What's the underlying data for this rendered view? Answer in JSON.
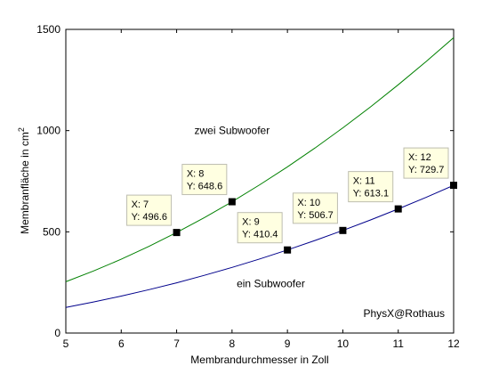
{
  "chart_data": {
    "type": "line",
    "xlabel": "Membrandurchmesser in Zoll",
    "ylabel_main": "Membranfläche in cm",
    "ylabel_sup": "2",
    "xlim": [
      5,
      12
    ],
    "ylim": [
      0,
      1500
    ],
    "x_ticks": [
      "5",
      "6",
      "7",
      "8",
      "9",
      "10",
      "11",
      "12"
    ],
    "y_ticks": [
      "0",
      "500",
      "1000",
      "1500"
    ],
    "grid": false,
    "series": [
      {
        "label": "zwei Subwoofer",
        "color": "#008000",
        "x": [
          5,
          5.5,
          6,
          6.5,
          7,
          7.5,
          8,
          8.5,
          9,
          9.5,
          10,
          10.5,
          11,
          11.5,
          12
        ],
        "y": [
          253.4,
          306.6,
          364.8,
          428.2,
          496.6,
          570.1,
          648.6,
          732.2,
          820.9,
          914.6,
          1013.4,
          1117.3,
          1226.2,
          1340.2,
          1459.3
        ]
      },
      {
        "label": "ein Subwoofer",
        "color": "#00008b",
        "x": [
          5,
          5.5,
          6,
          6.5,
          7,
          7.5,
          8,
          8.5,
          9,
          9.5,
          10,
          10.5,
          11,
          11.5,
          12
        ],
        "y": [
          126.7,
          153.3,
          182.4,
          214.1,
          248.3,
          285.0,
          324.3,
          366.1,
          410.4,
          457.3,
          506.7,
          558.6,
          613.1,
          670.1,
          729.7
        ]
      }
    ],
    "datatips": [
      {
        "x": 7,
        "y": 496.6,
        "xtext": "X: 7",
        "ytext": "Y: 496.6"
      },
      {
        "x": 8,
        "y": 648.6,
        "xtext": "X: 8",
        "ytext": "Y: 648.6"
      },
      {
        "x": 9,
        "y": 410.4,
        "xtext": "X: 9",
        "ytext": "Y: 410.4"
      },
      {
        "x": 10,
        "y": 506.7,
        "xtext": "X: 10",
        "ytext": "Y: 506.7"
      },
      {
        "x": 11,
        "y": 613.1,
        "xtext": "X: 11",
        "ytext": "Y: 613.1"
      },
      {
        "x": 12,
        "y": 729.7,
        "xtext": "X: 12",
        "ytext": "Y: 729.7"
      }
    ],
    "credit": "PhysX@Rothaus"
  }
}
